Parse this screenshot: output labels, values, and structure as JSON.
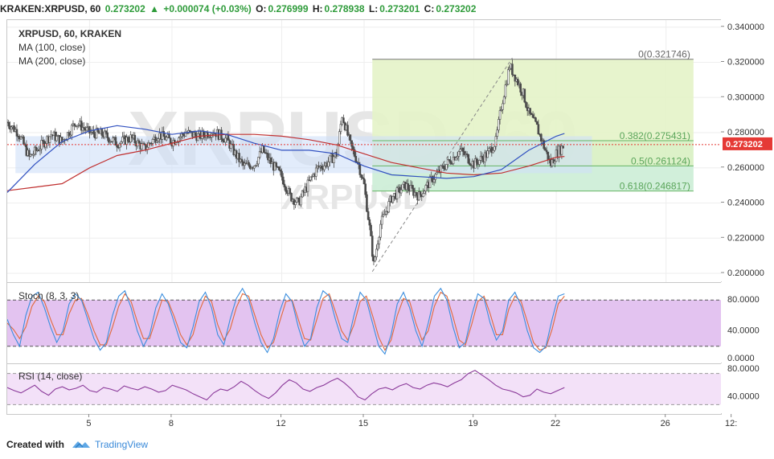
{
  "header": {
    "symbol": "KRAKEN:XRPUSD, 60",
    "last": "0.273202",
    "change_arrow": "▲",
    "change": "+0.000074 (+0.03%)",
    "o_label": "O:",
    "o": "0.276999",
    "h_label": "H:",
    "h": "0.278938",
    "l_label": "L:",
    "l": "0.273201",
    "c_label": "C:",
    "c": "0.273202"
  },
  "legend": {
    "title": "XRPUSD, 60, KRAKEN",
    "ma100": "MA (100, close)",
    "ma200": "MA (200, close)"
  },
  "watermark": {
    "symbol": "XRPUSD, 60",
    "small": "XRPUSD"
  },
  "stoch": {
    "label": "Stoch (8, 3, 3)"
  },
  "rsi": {
    "label": "RSI (14, close)"
  },
  "footer": {
    "made_with": "Created with",
    "brand": "TradingView"
  },
  "colors": {
    "candle": "#4a4a4a",
    "ma100": "#3050c0",
    "ma200": "#c03030",
    "fib_fill": "#e4f3c8",
    "fib_green": "#64b464",
    "range_box": "#cfe0f8",
    "price_tag": "#e53935",
    "stoch_band": "#e3c3f0",
    "stoch_k": "#3b8ede",
    "stoch_d": "#e26a3c",
    "rsi_band": "#f3e1f8",
    "rsi_line": "#8b3a9a"
  },
  "chart_data": [
    {
      "type": "candlestick",
      "title": "XRPUSD, 60, KRAKEN",
      "xlabel": "",
      "ylabel": "",
      "x_tick_labels": [
        "5",
        "8",
        "12",
        "15",
        "19",
        "22",
        "26",
        "12:"
      ],
      "y_tick_labels": [
        "0.340000",
        "0.320000",
        "0.300000",
        "0.280000",
        "0.260000",
        "0.240000",
        "0.220000",
        "0.200000"
      ],
      "ylim": [
        0.195,
        0.344
      ],
      "x_range_days": [
        2,
        28
      ],
      "ticks_day": [
        5,
        8,
        12,
        15,
        19,
        22,
        26,
        28.4
      ],
      "last_price": 0.273202,
      "last_price_label": "0.273202",
      "fib_levels": [
        {
          "ratio_label": "0(0.321746)",
          "value": 0.321746
        },
        {
          "ratio_label": "0.382(0.275431)",
          "value": 0.275431
        },
        {
          "ratio_label": "0.5(0.261124)",
          "value": 0.261124
        },
        {
          "ratio_label": "0.618(0.246817)",
          "value": 0.246817
        }
      ],
      "fib_start_day": 15.3,
      "fib_end_day": 27,
      "range_box": {
        "from_day": 2.3,
        "to_day": 23.3,
        "top": 0.278,
        "bottom": 0.257
      },
      "swing_line": [
        [
          15.3,
          0.201
        ],
        [
          20.4,
          0.3225
        ]
      ],
      "price_path": [
        [
          2.0,
          0.286
        ],
        [
          2.4,
          0.28
        ],
        [
          2.8,
          0.266
        ],
        [
          3.2,
          0.272
        ],
        [
          3.6,
          0.279
        ],
        [
          4.0,
          0.275
        ],
        [
          4.5,
          0.286
        ],
        [
          5.0,
          0.28
        ],
        [
          5.5,
          0.279
        ],
        [
          6.0,
          0.274
        ],
        [
          6.5,
          0.277
        ],
        [
          7.0,
          0.271
        ],
        [
          7.5,
          0.279
        ],
        [
          8.0,
          0.275
        ],
        [
          8.5,
          0.28
        ],
        [
          9.0,
          0.278
        ],
        [
          9.5,
          0.281
        ],
        [
          10.0,
          0.276
        ],
        [
          10.3,
          0.268
        ],
        [
          10.6,
          0.261
        ],
        [
          11.0,
          0.262
        ],
        [
          11.3,
          0.27
        ],
        [
          11.6,
          0.263
        ],
        [
          12.0,
          0.255
        ],
        [
          12.3,
          0.244
        ],
        [
          12.6,
          0.24
        ],
        [
          13.0,
          0.252
        ],
        [
          13.3,
          0.26
        ],
        [
          13.6,
          0.262
        ],
        [
          14.0,
          0.268
        ],
        [
          14.2,
          0.29
        ],
        [
          14.5,
          0.273
        ],
        [
          14.8,
          0.262
        ],
        [
          15.0,
          0.25
        ],
        [
          15.2,
          0.226
        ],
        [
          15.35,
          0.205
        ],
        [
          15.6,
          0.228
        ],
        [
          16.0,
          0.243
        ],
        [
          16.5,
          0.25
        ],
        [
          17.0,
          0.244
        ],
        [
          17.5,
          0.254
        ],
        [
          18.0,
          0.262
        ],
        [
          18.5,
          0.27
        ],
        [
          19.0,
          0.262
        ],
        [
          19.5,
          0.268
        ],
        [
          19.8,
          0.275
        ],
        [
          20.0,
          0.295
        ],
        [
          20.3,
          0.318
        ],
        [
          20.5,
          0.312
        ],
        [
          20.8,
          0.302
        ],
        [
          21.0,
          0.291
        ],
        [
          21.3,
          0.283
        ],
        [
          21.6,
          0.27
        ],
        [
          21.8,
          0.262
        ],
        [
          22.0,
          0.268
        ],
        [
          22.3,
          0.273202
        ]
      ],
      "ma100_path": [
        [
          2.0,
          0.246
        ],
        [
          3.0,
          0.262
        ],
        [
          4.0,
          0.275
        ],
        [
          5.0,
          0.281
        ],
        [
          6.0,
          0.284
        ],
        [
          7.0,
          0.282
        ],
        [
          8.0,
          0.279
        ],
        [
          9.0,
          0.281
        ],
        [
          10.0,
          0.279
        ],
        [
          11.0,
          0.274
        ],
        [
          12.0,
          0.27
        ],
        [
          13.0,
          0.27
        ],
        [
          14.0,
          0.268
        ],
        [
          15.0,
          0.261
        ],
        [
          16.0,
          0.256
        ],
        [
          17.0,
          0.255
        ],
        [
          18.0,
          0.254
        ],
        [
          19.0,
          0.255
        ],
        [
          20.0,
          0.259
        ],
        [
          21.0,
          0.27
        ],
        [
          22.0,
          0.278
        ],
        [
          22.3,
          0.2795
        ]
      ],
      "ma200_path": [
        [
          2.0,
          0.247
        ],
        [
          3.0,
          0.249
        ],
        [
          4.0,
          0.251
        ],
        [
          5.0,
          0.26
        ],
        [
          6.0,
          0.267
        ],
        [
          7.0,
          0.27
        ],
        [
          8.0,
          0.274
        ],
        [
          9.0,
          0.278
        ],
        [
          10.0,
          0.279
        ],
        [
          11.0,
          0.279
        ],
        [
          12.0,
          0.278
        ],
        [
          13.0,
          0.276
        ],
        [
          14.0,
          0.273
        ],
        [
          15.0,
          0.268
        ],
        [
          16.0,
          0.263
        ],
        [
          17.0,
          0.26
        ],
        [
          18.0,
          0.257
        ],
        [
          19.0,
          0.256
        ],
        [
          20.0,
          0.257
        ],
        [
          21.0,
          0.261
        ],
        [
          22.0,
          0.266
        ],
        [
          22.3,
          0.2665
        ]
      ]
    },
    {
      "type": "line",
      "title": "Stoch (8, 3, 3)",
      "ylim": [
        0,
        100
      ],
      "y_tick_labels": [
        "80.0000",
        "40.0000",
        "0.0000"
      ],
      "band": [
        20,
        80
      ],
      "series": [
        {
          "name": "%K",
          "values": [
            55,
            35,
            20,
            60,
            85,
            90,
            70,
            45,
            25,
            40,
            75,
            88,
            80,
            55,
            30,
            15,
            25,
            60,
            85,
            92,
            70,
            40,
            20,
            35,
            70,
            88,
            75,
            50,
            25,
            18,
            45,
            78,
            90,
            70,
            35,
            22,
            55,
            82,
            95,
            80,
            50,
            25,
            12,
            30,
            65,
            88,
            78,
            45,
            20,
            30,
            70,
            92,
            85,
            55,
            30,
            25,
            60,
            90,
            80,
            50,
            20,
            10,
            35,
            75,
            90,
            70,
            40,
            20,
            50,
            85,
            95,
            80,
            45,
            18,
            25,
            60,
            88,
            82,
            50,
            28,
            40,
            80,
            90,
            72,
            40,
            18,
            12,
            20,
            55,
            85,
            88
          ]
        },
        {
          "name": "%D",
          "values": [
            50,
            42,
            30,
            45,
            72,
            85,
            78,
            55,
            35,
            35,
            62,
            80,
            82,
            62,
            40,
            22,
            22,
            45,
            72,
            88,
            78,
            52,
            30,
            30,
            55,
            80,
            78,
            58,
            35,
            22,
            35,
            65,
            85,
            78,
            48,
            28,
            42,
            70,
            88,
            85,
            60,
            35,
            18,
            25,
            52,
            78,
            80,
            55,
            30,
            28,
            55,
            82,
            88,
            65,
            40,
            28,
            48,
            78,
            85,
            60,
            32,
            15,
            28,
            60,
            82,
            78,
            50,
            28,
            40,
            72,
            90,
            85,
            58,
            28,
            22,
            48,
            78,
            85,
            62,
            35,
            35,
            68,
            85,
            78,
            52,
            25,
            15,
            18,
            42,
            75,
            85
          ]
        }
      ]
    },
    {
      "type": "line",
      "title": "RSI (14, close)",
      "ylim": [
        20,
        80
      ],
      "y_tick_labels": [
        "80.0000",
        "40.0000"
      ],
      "band": [
        30,
        70
      ],
      "series": [
        {
          "name": "RSI",
          "values": [
            52,
            48,
            45,
            50,
            55,
            47,
            42,
            50,
            53,
            49,
            51,
            55,
            48,
            46,
            52,
            50,
            47,
            54,
            51,
            49,
            53,
            50,
            46,
            48,
            55,
            52,
            49,
            44,
            40,
            36,
            45,
            50,
            48,
            53,
            60,
            55,
            48,
            42,
            38,
            45,
            55,
            62,
            58,
            50,
            47,
            52,
            55,
            60,
            64,
            58,
            50,
            40,
            36,
            44,
            50,
            52,
            49,
            54,
            57,
            52,
            50,
            55,
            58,
            56,
            53,
            58,
            62,
            70,
            74,
            68,
            62,
            55,
            50,
            48,
            45,
            40,
            42,
            50,
            46,
            44,
            48,
            52
          ]
        }
      ]
    }
  ]
}
